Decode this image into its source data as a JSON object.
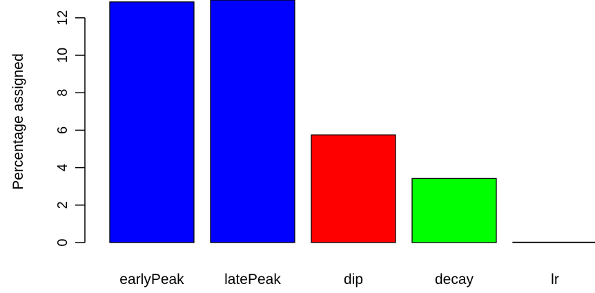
{
  "chart_data": {
    "type": "bar",
    "title": "",
    "xlabel": "",
    "ylabel": "Percentage assigned",
    "categories": [
      "earlyPeak",
      "latePeak",
      "dip",
      "decay",
      "lr"
    ],
    "values": [
      12.85,
      13.2,
      5.75,
      3.42,
      0.02
    ],
    "colors": [
      "#0000ff",
      "#0000ff",
      "#ff0000",
      "#00ff00",
      "#ffffff"
    ],
    "yticks": [
      0,
      2,
      4,
      6,
      8,
      10,
      12
    ],
    "ylim": [
      0,
      13.2
    ],
    "grid": false
  }
}
